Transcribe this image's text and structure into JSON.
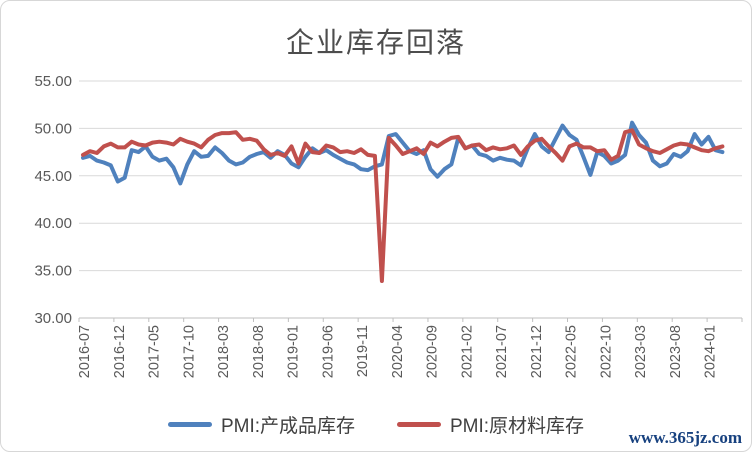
{
  "title": "企业库存回落",
  "watermark": "www.365jz.com",
  "chart_data": {
    "type": "line",
    "title": "企业库存回落",
    "xlabel": "",
    "ylabel": "",
    "ylim": [
      30,
      55
    ],
    "ytick_values": [
      55,
      50,
      45,
      40,
      35,
      30
    ],
    "ytick_labels": [
      "55.00",
      "50.00",
      "45.00",
      "40.00",
      "35.00",
      "30.00"
    ],
    "x_tick_interval": 5,
    "grid": true,
    "legend_position": "bottom",
    "x": [
      "2016-07",
      "2016-08",
      "2016-09",
      "2016-10",
      "2016-11",
      "2016-12",
      "2017-01",
      "2017-02",
      "2017-03",
      "2017-04",
      "2017-05",
      "2017-06",
      "2017-07",
      "2017-08",
      "2017-09",
      "2017-10",
      "2017-11",
      "2017-12",
      "2018-01",
      "2018-02",
      "2018-03",
      "2018-04",
      "2018-05",
      "2018-06",
      "2018-07",
      "2018-08",
      "2018-09",
      "2018-10",
      "2018-11",
      "2018-12",
      "2019-01",
      "2019-02",
      "2019-03",
      "2019-04",
      "2019-05",
      "2019-06",
      "2019-07",
      "2019-08",
      "2019-09",
      "2019-10",
      "2019-11",
      "2019-12",
      "2020-01",
      "2020-02",
      "2020-03",
      "2020-04",
      "2020-05",
      "2020-06",
      "2020-07",
      "2020-08",
      "2020-09",
      "2020-10",
      "2020-11",
      "2020-12",
      "2021-01",
      "2021-02",
      "2021-03",
      "2021-04",
      "2021-05",
      "2021-06",
      "2021-07",
      "2021-08",
      "2021-09",
      "2021-10",
      "2021-11",
      "2021-12",
      "2022-01",
      "2022-02",
      "2022-03",
      "2022-04",
      "2022-05",
      "2022-06",
      "2022-07",
      "2022-08",
      "2022-09",
      "2022-10",
      "2022-11",
      "2022-12",
      "2023-01",
      "2023-02",
      "2023-03",
      "2023-04",
      "2023-05",
      "2023-06",
      "2023-07",
      "2023-08",
      "2023-09",
      "2023-10",
      "2023-11",
      "2023-12",
      "2024-01",
      "2024-02",
      "2024-03"
    ],
    "series": [
      {
        "name": "PMI:产成品库存",
        "color": "#4F81BD",
        "values": [
          46.9,
          47.1,
          46.6,
          46.4,
          46.1,
          44.4,
          44.8,
          47.7,
          47.5,
          48.1,
          47.0,
          46.6,
          46.8,
          45.9,
          44.2,
          46.2,
          47.6,
          47.0,
          47.1,
          48.0,
          47.4,
          46.6,
          46.2,
          46.4,
          47.0,
          47.3,
          47.5,
          46.9,
          47.6,
          47.2,
          46.3,
          45.9,
          47.0,
          47.9,
          47.4,
          47.7,
          47.2,
          46.8,
          46.4,
          46.2,
          45.7,
          45.6,
          46.0,
          46.2,
          49.2,
          49.4,
          48.5,
          47.6,
          47.3,
          47.7,
          45.7,
          44.9,
          45.7,
          46.2,
          49.0,
          47.9,
          48.2,
          47.3,
          47.1,
          46.6,
          46.9,
          46.7,
          46.6,
          46.1,
          47.9,
          49.4,
          48.1,
          47.5,
          48.9,
          50.3,
          49.3,
          48.8,
          47.0,
          45.1,
          47.5,
          47.1,
          46.3,
          46.6,
          47.2,
          50.6,
          49.3,
          48.5,
          46.6,
          46.0,
          46.3,
          47.3,
          47.0,
          47.6,
          49.4,
          48.3,
          49.1,
          47.7,
          47.5
        ]
      },
      {
        "name": "PMI:原材料库存",
        "color": "#C0504D",
        "values": [
          47.2,
          47.6,
          47.4,
          48.1,
          48.4,
          48.0,
          48.0,
          48.6,
          48.3,
          48.2,
          48.5,
          48.6,
          48.5,
          48.3,
          48.9,
          48.6,
          48.4,
          48.0,
          48.8,
          49.3,
          49.5,
          49.5,
          49.6,
          48.8,
          48.9,
          48.7,
          47.8,
          47.2,
          47.4,
          47.1,
          48.1,
          46.3,
          48.4,
          47.5,
          47.4,
          48.2,
          48.0,
          47.5,
          47.6,
          47.4,
          47.8,
          47.2,
          47.1,
          33.9,
          49.0,
          48.2,
          47.3,
          47.6,
          47.9,
          47.3,
          48.5,
          48.1,
          48.6,
          49.0,
          49.1,
          47.9,
          48.2,
          48.3,
          47.7,
          48.0,
          47.8,
          47.9,
          48.2,
          47.2,
          48.1,
          48.7,
          48.9,
          48.1,
          47.4,
          46.6,
          48.1,
          48.4,
          48.0,
          48.0,
          47.6,
          47.7,
          46.7,
          47.1,
          49.6,
          49.8,
          48.3,
          47.9,
          47.6,
          47.4,
          47.8,
          48.2,
          48.4,
          48.3,
          48.0,
          47.7,
          47.6,
          47.9,
          48.1
        ]
      }
    ]
  },
  "colors": {
    "series_finished_goods": "#4F81BD",
    "series_raw_materials": "#C0504D",
    "gridline": "#D9D9D9",
    "axis": "#BFBFBF",
    "text": "#595959",
    "watermark": "#17417F"
  }
}
